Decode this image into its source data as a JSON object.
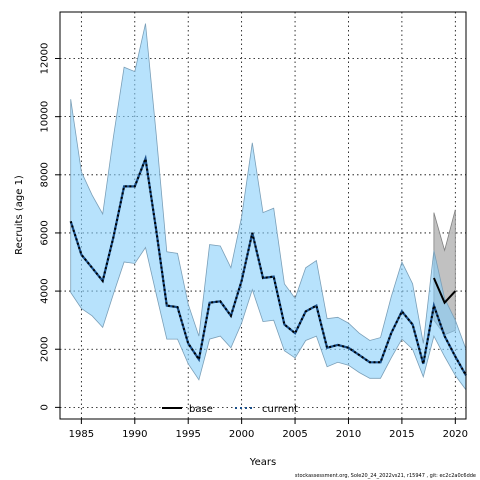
{
  "chart_data": {
    "type": "line",
    "xlabel": "Years",
    "ylabel": "Recruits (age 1)",
    "xlim": [
      1983,
      2021
    ],
    "ylim": [
      -400,
      13600
    ],
    "xticks": [
      1985,
      1990,
      1995,
      2000,
      2005,
      2010,
      2015,
      2020
    ],
    "yticks": [
      0,
      2000,
      4000,
      6000,
      8000,
      10000,
      12000
    ],
    "grid": true,
    "legend_position": "bottom-center",
    "footnote": "stockassessment.org, Sole20_24_2022vs21, r15947 , git: ec2c2a0c6dde",
    "series": [
      {
        "name": "base",
        "color": "#000000",
        "line_style": "solid",
        "band_color": "#bebebe",
        "x": [
          2018,
          2019,
          2020
        ],
        "values": [
          4450,
          3600,
          4000
        ],
        "lower": [
          3000,
          2500,
          2650
        ],
        "upper": [
          6700,
          5400,
          6800
        ]
      },
      {
        "name": "current",
        "color": "#000000",
        "line_style": "dotted",
        "band_color": "#87cefa",
        "x": [
          1984,
          1985,
          1986,
          1987,
          1988,
          1989,
          1990,
          1991,
          1992,
          1993,
          1994,
          1995,
          1996,
          1997,
          1998,
          1999,
          2000,
          2001,
          2002,
          2003,
          2004,
          2005,
          2006,
          2007,
          2008,
          2009,
          2010,
          2011,
          2012,
          2013,
          2014,
          2015,
          2016,
          2017,
          2018,
          2019,
          2020,
          2021
        ],
        "values": [
          6400,
          5250,
          4800,
          4350,
          5850,
          7600,
          7600,
          8550,
          6100,
          3500,
          3450,
          2200,
          1650,
          3600,
          3650,
          3150,
          4350,
          6000,
          4450,
          4500,
          2850,
          2550,
          3300,
          3500,
          2050,
          2150,
          2050,
          1800,
          1550,
          1550,
          2550,
          3300,
          2850,
          1500,
          3500,
          2450,
          1750,
          1100
        ],
        "lower": [
          3950,
          3400,
          3150,
          2750,
          3900,
          5000,
          4950,
          5500,
          3900,
          2350,
          2350,
          1500,
          950,
          2350,
          2450,
          2050,
          2900,
          4050,
          2950,
          3000,
          1950,
          1700,
          2300,
          2450,
          1400,
          1550,
          1450,
          1200,
          1000,
          1000,
          1700,
          2350,
          2000,
          1050,
          2450,
          1750,
          1100,
          600
        ],
        "upper": [
          10600,
          8100,
          7300,
          6650,
          9300,
          11700,
          11550,
          13200,
          9400,
          5350,
          5300,
          3550,
          2450,
          5600,
          5550,
          4800,
          6550,
          9100,
          6700,
          6850,
          4250,
          3750,
          4800,
          5050,
          3050,
          3100,
          2900,
          2550,
          2300,
          2400,
          3800,
          5000,
          4250,
          2200,
          5400,
          3750,
          3000,
          2000
        ]
      }
    ]
  }
}
